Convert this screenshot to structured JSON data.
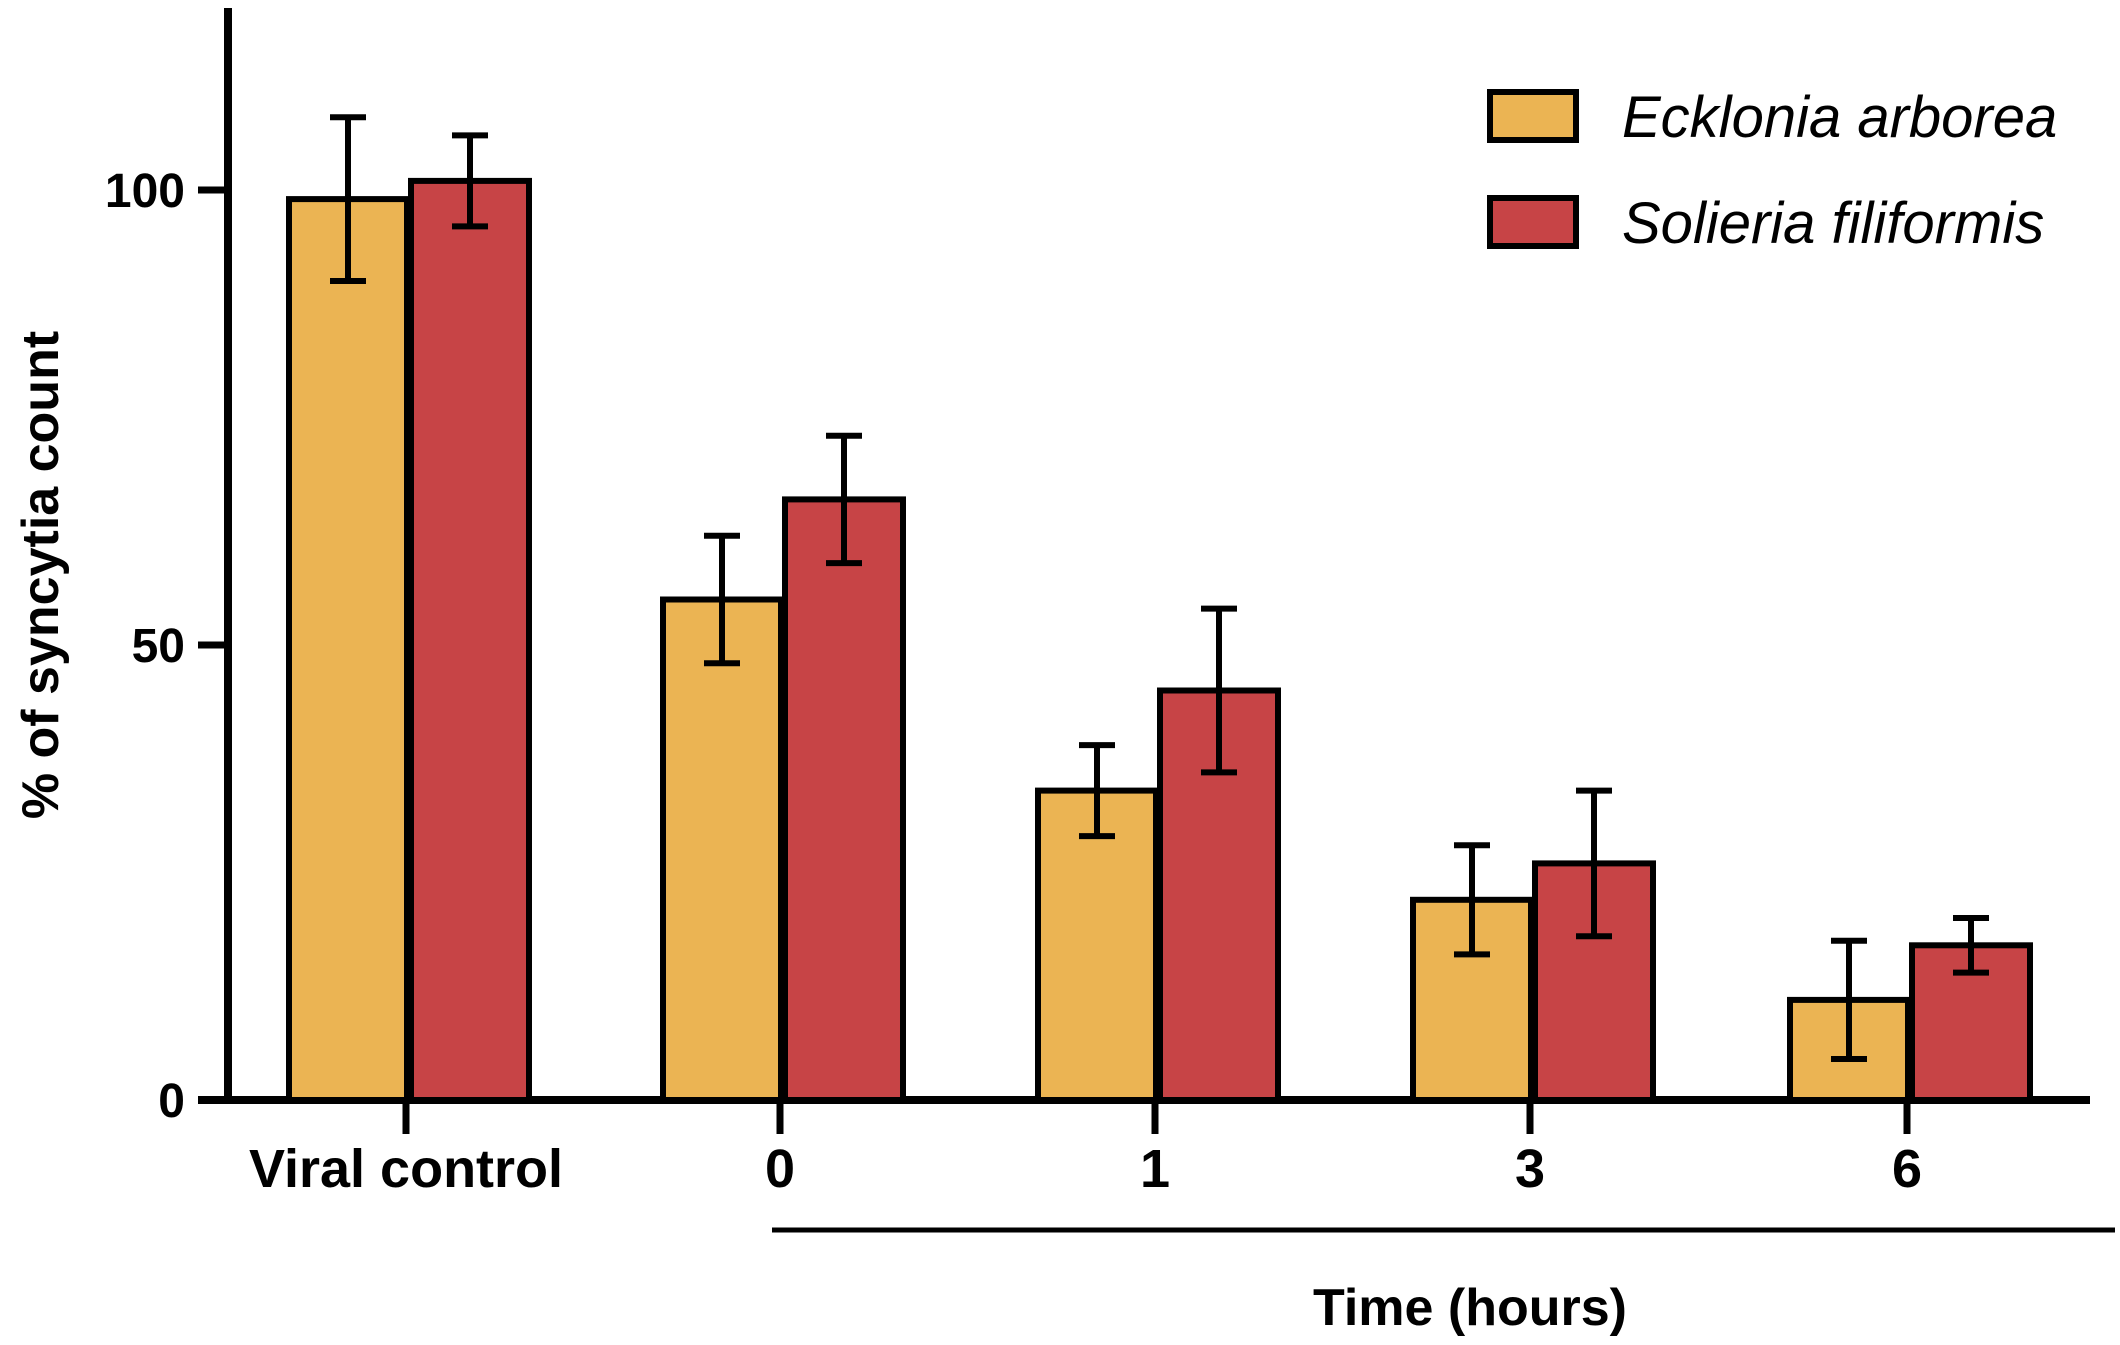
{
  "chart_data": {
    "type": "bar",
    "title": "",
    "ylabel": "% of syncytia count",
    "xlabel": "Time (hours)",
    "categories": [
      "Viral control",
      "0",
      "1",
      "3",
      "6"
    ],
    "ylim": [
      0,
      120
    ],
    "yticks": [
      "0",
      "50",
      "100"
    ],
    "ytick_values": [
      0,
      50,
      100
    ],
    "grid": false,
    "legend_position": "top-right",
    "series": [
      {
        "name": "Ecklonia arborea",
        "color": "#EBB453",
        "values": [
          99,
          55,
          34,
          22,
          11
        ],
        "errors": [
          9,
          7,
          5,
          6,
          6.5
        ]
      },
      {
        "name": "Solieria filiformis",
        "color": "#C74446",
        "values": [
          101,
          66,
          45,
          26,
          17
        ],
        "errors": [
          5,
          7,
          9,
          8,
          3
        ]
      }
    ]
  }
}
